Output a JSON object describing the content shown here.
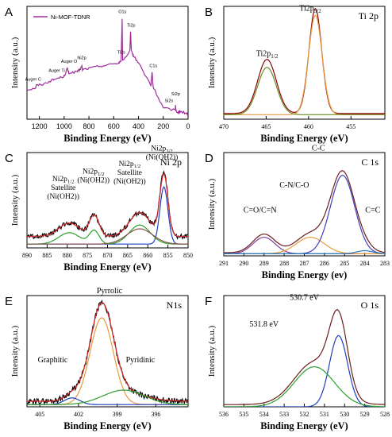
{
  "figure": {
    "background": "#ffffff"
  },
  "chart_data": [
    {
      "panel": "A",
      "type": "line",
      "title": "",
      "xlabel": "Binding Energy (eV)",
      "ylabel": "Intensity (a.u.)",
      "xlim": [
        1300,
        0
      ],
      "xticks": [
        "1200",
        "1000",
        "800",
        "600",
        "400",
        "200",
        "0"
      ],
      "legend": "Ni-MOF-TDNR",
      "series": [
        {
          "name": "Ni-MOF-TDNR",
          "color": "#a02c9a",
          "x": [
            1300,
            1230,
            1225,
            1170,
            1110,
            1060,
            1000,
            975,
            962,
            900,
            880,
            857,
            853,
            800,
            720,
            650,
            560,
            540,
            532,
            528,
            470,
            464,
            458,
            440,
            400,
            300,
            290,
            285,
            280,
            200,
            104,
            101,
            100,
            80,
            60,
            10,
            0
          ],
          "y": [
            0.26,
            0.28,
            0.3,
            0.31,
            0.34,
            0.36,
            0.38,
            0.45,
            0.41,
            0.42,
            0.43,
            0.47,
            0.44,
            0.45,
            0.47,
            0.48,
            0.5,
            0.52,
            0.88,
            0.52,
            0.6,
            0.78,
            0.6,
            0.56,
            0.5,
            0.3,
            0.42,
            0.32,
            0.28,
            0.1,
            0.08,
            0.13,
            0.08,
            0.06,
            0.07,
            0.05,
            0.04
          ]
        }
      ],
      "annotations": [
        {
          "text": "Auger C",
          "x": 1250,
          "y": 0.34
        },
        {
          "text": "Auger Ti",
          "x": 1060,
          "y": 0.42
        },
        {
          "text": "Auger O",
          "x": 960,
          "y": 0.5
        },
        {
          "text": "Ni2p",
          "x": 858,
          "y": 0.53
        },
        {
          "text": "Ti2s",
          "x": 540,
          "y": 0.58
        },
        {
          "text": "O1s",
          "x": 530,
          "y": 0.94
        },
        {
          "text": "Ti2p",
          "x": 460,
          "y": 0.82
        },
        {
          "text": "C1s",
          "x": 280,
          "y": 0.46
        },
        {
          "text": "Si2p",
          "x": 100,
          "y": 0.21
        },
        {
          "text": "Si2s",
          "x": 155,
          "y": 0.15
        }
      ]
    },
    {
      "panel": "B",
      "type": "line",
      "title": "Ti 2p",
      "xlabel": "Binding Energy (eV)",
      "ylabel": "Intensity (a.u.)",
      "xlim": [
        470,
        451
      ],
      "xticks": [
        "470",
        "465",
        "460",
        "455"
      ],
      "series": [
        {
          "name": "",
          "color": "#8b0000",
          "peaks": [
            {
              "center": 464.9,
              "height": 0.48,
              "width": 1.1
            },
            {
              "center": 459.2,
              "height": 0.93,
              "width": 0.75
            }
          ],
          "baseline": 0.05
        },
        {
          "name": "",
          "color": "#e89a3c",
          "peaks": [
            {
              "center": 459.2,
              "height": 0.88,
              "width": 0.8
            }
          ],
          "baseline": 0.04
        },
        {
          "name": "",
          "color": "#6b8e23",
          "peaks": [
            {
              "center": 464.9,
              "height": 0.42,
              "width": 1.1
            }
          ],
          "baseline": 0.04
        }
      ],
      "annotations": [
        {
          "text": "Ti2p1/2",
          "x": 464.9,
          "y": 0.56
        },
        {
          "text": "Ti2p3/2",
          "x": 459.8,
          "y": 0.96
        }
      ]
    },
    {
      "panel": "C",
      "type": "line",
      "title": "Ni 2p",
      "xlabel": "Binding Energy (eV)",
      "ylabel": "Intensity (a.u.)",
      "xlim": [
        890,
        850
      ],
      "xticks": [
        "890",
        "885",
        "880",
        "875",
        "870",
        "865",
        "860",
        "855",
        "850"
      ],
      "series": [
        {
          "name": "",
          "color": "#000000",
          "noisy": true,
          "peaks": [
            {
              "center": 879.5,
              "height": 0.14,
              "width": 2.6
            },
            {
              "center": 873.3,
              "height": 0.22,
              "width": 1.2
            },
            {
              "center": 862.0,
              "height": 0.25,
              "width": 2.6
            },
            {
              "center": 856.0,
              "height": 0.66,
              "width": 1.0
            }
          ],
          "baseline": 0.12
        },
        {
          "name": "",
          "color": "#d62728",
          "peaks": [
            {
              "center": 879.5,
              "height": 0.14,
              "width": 2.6
            },
            {
              "center": 873.3,
              "height": 0.22,
              "width": 1.2
            },
            {
              "center": 862.0,
              "height": 0.25,
              "width": 2.6
            },
            {
              "center": 856.0,
              "height": 0.64,
              "width": 1.0
            }
          ],
          "baseline": 0.12
        },
        {
          "name": "",
          "color": "#1f3fbf",
          "peaks": [
            {
              "center": 856.0,
              "height": 0.6,
              "width": 1.0
            }
          ],
          "baseline": 0.04
        },
        {
          "name": "",
          "color": "#2ca02c",
          "peaks": [
            {
              "center": 879.5,
              "height": 0.12,
              "width": 2.6
            },
            {
              "center": 873.3,
              "height": 0.14,
              "width": 1.2
            },
            {
              "center": 862.0,
              "height": 0.2,
              "width": 2.6
            }
          ],
          "baseline": 0.04
        },
        {
          "name": "",
          "color": "#8c564b",
          "peaks": [
            {
              "center": 862.0,
              "height": 0.16,
              "width": 3.2
            }
          ],
          "baseline": 0.04
        }
      ],
      "annotations": [
        {
          "lines": [
            "Ni2p1/2",
            "Satellite",
            "(Ni(OH2))"
          ],
          "x": 881,
          "y": 0.7
        },
        {
          "lines": [
            "Ni2p1/2",
            "(Ni(OH2))"
          ],
          "x": 873.5,
          "y": 0.78
        },
        {
          "lines": [
            "Ni2p1/2",
            "Satellite",
            "(Ni(OH2))"
          ],
          "x": 864.5,
          "y": 0.86
        },
        {
          "lines": [
            "Ni2p3/2",
            "(Ni(OH2))"
          ],
          "x": 856.5,
          "y": 1.02
        }
      ]
    },
    {
      "panel": "D",
      "type": "line",
      "title": "C 1s",
      "xlabel": "Binding Energy (ev)",
      "ylabel": "Intensity (a.u.)",
      "xlim": [
        291,
        283
      ],
      "xticks": [
        "291",
        "290",
        "289",
        "288",
        "287",
        "286",
        "285",
        "284",
        "283"
      ],
      "series": [
        {
          "name": "",
          "color": "#6b1d1d",
          "peaks": [
            {
              "center": 289.0,
              "height": 0.18,
              "width": 0.55
            },
            {
              "center": 286.7,
              "height": 0.18,
              "width": 0.7
            },
            {
              "center": 285.1,
              "height": 0.78,
              "width": 0.6
            },
            {
              "center": 284.0,
              "height": 0.04,
              "width": 0.4
            }
          ],
          "baseline": 0.03
        },
        {
          "name": "",
          "color": "#7b3fa0",
          "peaks": [
            {
              "center": 289.0,
              "height": 0.16,
              "width": 0.55
            }
          ],
          "baseline": 0.02
        },
        {
          "name": "",
          "color": "#e89a3c",
          "peaks": [
            {
              "center": 286.7,
              "height": 0.16,
              "width": 0.7
            }
          ],
          "baseline": 0.02
        },
        {
          "name": "",
          "color": "#3f3fbf",
          "peaks": [
            {
              "center": 285.1,
              "height": 0.76,
              "width": 0.6
            }
          ],
          "baseline": 0.02
        },
        {
          "name": "",
          "color": "#2c7fb8",
          "peaks": [
            {
              "center": 284.0,
              "height": 0.03,
              "width": 0.4
            }
          ],
          "baseline": 0.02
        }
      ],
      "annotations": [
        {
          "text": "C-C",
          "x": 286.3,
          "y": 1.02
        },
        {
          "text": "C-N/C-O",
          "x": 287.5,
          "y": 0.66
        },
        {
          "text": "C=O/C=N",
          "x": 289.2,
          "y": 0.42
        },
        {
          "text": "C=C",
          "x": 283.6,
          "y": 0.42
        }
      ]
    },
    {
      "panel": "E",
      "type": "line",
      "title": "N1s",
      "xlabel": "Binding Energy (eV)",
      "ylabel": "Intensity (a.u.)",
      "xlim": [
        406,
        393.5
      ],
      "xticks": [
        "405",
        "402",
        "399",
        "396"
      ],
      "series": [
        {
          "name": "",
          "color": "#000000",
          "noisy": true,
          "peaks": [
            {
              "center": 402.5,
              "height": 0.06,
              "width": 0.6
            },
            {
              "center": 400.2,
              "height": 0.84,
              "width": 0.9
            },
            {
              "center": 398.5,
              "height": 0.08,
              "width": 1.6
            }
          ],
          "baseline": 0.05
        },
        {
          "name": "",
          "color": "#d62728",
          "peaks": [
            {
              "center": 402.5,
              "height": 0.06,
              "width": 0.6
            },
            {
              "center": 400.2,
              "height": 0.84,
              "width": 0.9
            },
            {
              "center": 398.5,
              "height": 0.08,
              "width": 1.6
            }
          ],
          "baseline": 0.05
        },
        {
          "name": "",
          "color": "#e89a3c",
          "peaks": [
            {
              "center": 400.2,
              "height": 0.78,
              "width": 0.9
            }
          ],
          "baseline": 0.02
        },
        {
          "name": "",
          "color": "#1f3fbf",
          "peaks": [
            {
              "center": 402.5,
              "height": 0.06,
              "width": 0.6
            }
          ],
          "baseline": 0.02
        },
        {
          "name": "",
          "color": "#2ca02c",
          "peaks": [
            {
              "center": 398.5,
              "height": 0.13,
              "width": 1.6
            }
          ],
          "baseline": 0.02
        }
      ],
      "annotations": [
        {
          "text": "Pyrrolic",
          "x": 399.6,
          "y": 1.02
        },
        {
          "text": "Graphitic",
          "x": 404.0,
          "y": 0.4
        },
        {
          "text": "Pyridinic",
          "x": 397.2,
          "y": 0.4
        }
      ]
    },
    {
      "panel": "F",
      "type": "line",
      "title": "O 1s",
      "xlabel": "Binding Energy (eV)",
      "ylabel": "Intensity (a.u.)",
      "xlim": [
        536,
        528
      ],
      "xticks": [
        "536",
        "535",
        "534",
        "533",
        "532",
        "531",
        "530",
        "529",
        "528"
      ],
      "series": [
        {
          "name": "",
          "color": "#6b1d1d",
          "peaks": [
            {
              "center": 530.3,
              "height": 0.66,
              "width": 0.45
            },
            {
              "center": 531.5,
              "height": 0.38,
              "width": 1.0
            }
          ],
          "baseline": 0.02
        },
        {
          "name": "",
          "color": "#1f3fbf",
          "peaks": [
            {
              "center": 530.3,
              "height": 0.64,
              "width": 0.45
            }
          ],
          "baseline": 0.0
        },
        {
          "name": "",
          "color": "#2ca02c",
          "peaks": [
            {
              "center": 531.5,
              "height": 0.36,
              "width": 1.0
            }
          ],
          "baseline": 0.0
        }
      ],
      "annotations": [
        {
          "text": "530.7 eV",
          "x": 532.0,
          "y": 0.96
        },
        {
          "text": "531.8 eV",
          "x": 534.0,
          "y": 0.72
        }
      ]
    }
  ]
}
